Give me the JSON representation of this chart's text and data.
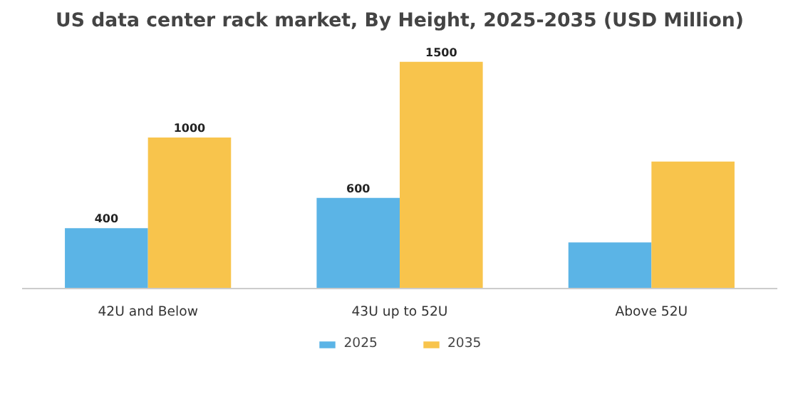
{
  "chart_data": {
    "type": "bar",
    "title": "US data center rack market, By Height, 2025-2035 (USD Million)",
    "categories": [
      "42U and Below",
      "43U up to 52U",
      "Above 52U"
    ],
    "series": [
      {
        "name": "2025",
        "color": "#5bb4e6",
        "values": [
          400,
          600,
          305
        ],
        "value_labels": [
          "400",
          "600",
          null
        ]
      },
      {
        "name": "2035",
        "color": "#f8c44c",
        "values": [
          1000,
          1500,
          840
        ],
        "value_labels": [
          "1000",
          "1500",
          null
        ]
      }
    ],
    "legend": "bottom"
  }
}
